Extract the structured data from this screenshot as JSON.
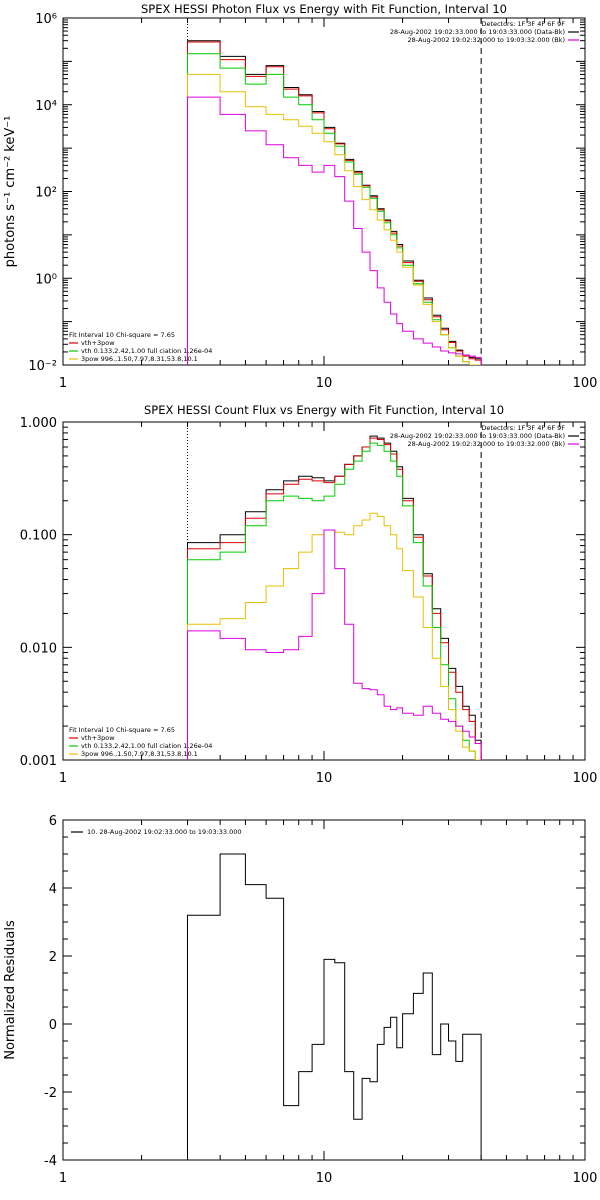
{
  "chart_data": [
    {
      "type": "line",
      "title": "SPEX HESSI Photon Flux vs Energy with Fit Function, Interval 10",
      "xlabel": "",
      "ylabel": "photons s⁻¹ cm⁻² keV⁻¹",
      "x_scale": "log",
      "y_scale": "log",
      "xlim": [
        1,
        100
      ],
      "ylim": [
        0.01,
        1000000
      ],
      "x_ticks": [
        {
          "v": 1,
          "label": "1"
        },
        {
          "v": 10,
          "label": "10"
        },
        {
          "v": 100,
          "label": "100"
        }
      ],
      "y_ticks": [
        {
          "v": 0.01,
          "label": "10⁻²"
        },
        {
          "v": 1,
          "label": "10⁰"
        },
        {
          "v": 100,
          "label": "10²"
        },
        {
          "v": 10000,
          "label": "10⁴"
        },
        {
          "v": 1000000,
          "label": "10⁶"
        }
      ],
      "vlines": [
        {
          "x": 3,
          "style": "dotted"
        },
        {
          "x": 40,
          "style": "dashed"
        }
      ],
      "legend_top_right": [
        "Detectors: 1F 3F 4F 6F 9F",
        "28-Aug-2002 19:02:33.000 to 19:03:33.000 (Data-Bk)",
        "28-Aug-2002 19:02:32.000 to 19:03:32.000 (Bk)"
      ],
      "legend_bottom_left": [
        "Fit Interval 10   Chi-square = 7.65",
        "vth+3pow",
        "vth 0.133,2.42,1.00  full ciation 1.26e-04",
        "3pow 996.,1.50,7.97,8.31,53.8,10.1"
      ],
      "edges": [
        3,
        4,
        5,
        6,
        7,
        8,
        9,
        10,
        11,
        12,
        13,
        14,
        15,
        16,
        17,
        18,
        19,
        20,
        22,
        24,
        26,
        28,
        30,
        32,
        34,
        36,
        38,
        40
      ],
      "series": [
        {
          "color": "#000000",
          "values": [
            300000,
            130000,
            50000,
            80000,
            25000,
            17000,
            7000,
            3000,
            1300,
            550,
            290,
            140,
            80,
            40,
            22,
            12,
            6,
            2.5,
            0.9,
            0.35,
            0.14,
            0.07,
            0.035,
            0.022,
            0.017,
            0.015,
            0.014
          ]
        },
        {
          "color": "#dd0000",
          "values": [
            280000,
            110000,
            45000,
            75000,
            23000,
            16000,
            6500,
            2800,
            1250,
            520,
            270,
            135,
            75,
            38,
            21,
            11,
            5.5,
            2.3,
            0.85,
            0.32,
            0.13,
            0.065,
            0.033,
            0.021,
            0.016,
            0.014,
            0.013
          ]
        },
        {
          "color": "#00cc00",
          "values": [
            150000,
            70000,
            30000,
            50000,
            15000,
            10000,
            4500,
            2200,
            1100,
            480,
            250,
            125,
            70,
            35,
            19,
            10,
            5,
            2,
            0.75,
            0.28,
            0.11,
            0.05,
            0.025,
            0.016,
            0.012,
            0.01,
            0.01
          ]
        },
        {
          "color": "#e8c000",
          "values": [
            50000,
            20000,
            9000,
            6000,
            4500,
            3200,
            2200,
            1400,
            700,
            300,
            130,
            65,
            38,
            22,
            13,
            7.5,
            4,
            1.8,
            0.7,
            0.25,
            0.1,
            0.05,
            0.025,
            0.016,
            0.012,
            0.01,
            0.01
          ]
        },
        {
          "color": "#e000e0",
          "values": [
            15000,
            6000,
            2500,
            1200,
            600,
            400,
            280,
            400,
            220,
            60,
            14,
            4,
            1.5,
            0.6,
            0.28,
            0.15,
            0.09,
            0.06,
            0.04,
            0.032,
            0.026,
            0.021,
            0.019,
            0.018,
            0.017,
            0.016,
            0.015
          ]
        }
      ]
    },
    {
      "type": "line",
      "title": "SPEX HESSI Count Flux vs Energy with Fit Function, Interval 10",
      "xlabel": "",
      "ylabel": "",
      "x_scale": "log",
      "y_scale": "log",
      "xlim": [
        1,
        100
      ],
      "ylim": [
        0.001,
        1
      ],
      "x_ticks": [
        {
          "v": 1,
          "label": "1"
        },
        {
          "v": 10,
          "label": "10"
        },
        {
          "v": 100,
          "label": "100"
        }
      ],
      "y_ticks": [
        {
          "v": 0.001,
          "label": "0.001"
        },
        {
          "v": 0.01,
          "label": "0.010"
        },
        {
          "v": 0.1,
          "label": "0.100"
        },
        {
          "v": 1,
          "label": "1.000"
        }
      ],
      "vlines": [
        {
          "x": 3,
          "style": "dotted"
        },
        {
          "x": 40,
          "style": "dashed"
        }
      ],
      "legend_top_right": [
        "Detectors: 1F 3F 4F 6F 9F",
        "28-Aug-2002 19:02:33.000 to 19:03:33.000 (Data-Bk)",
        "28-Aug-2002 19:02:32.000 to 19:03:32.000 (Bk)"
      ],
      "legend_bottom_left": [
        "Fit Interval 10   Chi-square = 7.65",
        "vth+3pow",
        "vth 0.133,2.42,1.00  full ciation 1.26e-04",
        "3pow 996.,1.50,7.97,8.31,53.8,10.1"
      ],
      "edges": [
        3,
        4,
        5,
        6,
        7,
        8,
        9,
        10,
        11,
        12,
        13,
        14,
        15,
        16,
        17,
        18,
        19,
        20,
        22,
        24,
        26,
        28,
        30,
        32,
        34,
        36,
        38,
        40
      ],
      "series": [
        {
          "color": "#000000",
          "values": [
            0.085,
            0.1,
            0.16,
            0.25,
            0.3,
            0.33,
            0.32,
            0.3,
            0.33,
            0.42,
            0.5,
            0.6,
            0.75,
            0.72,
            0.65,
            0.55,
            0.4,
            0.21,
            0.1,
            0.045,
            0.022,
            0.012,
            0.0065,
            0.0045,
            0.003,
            0.0025,
            0.0015
          ]
        },
        {
          "color": "#dd0000",
          "values": [
            0.075,
            0.085,
            0.14,
            0.23,
            0.28,
            0.31,
            0.3,
            0.29,
            0.33,
            0.42,
            0.5,
            0.6,
            0.72,
            0.7,
            0.63,
            0.52,
            0.38,
            0.2,
            0.095,
            0.043,
            0.02,
            0.011,
            0.006,
            0.004,
            0.0028,
            0.0022,
            0.0014
          ]
        },
        {
          "color": "#00cc00",
          "values": [
            0.06,
            0.07,
            0.12,
            0.2,
            0.22,
            0.21,
            0.2,
            0.22,
            0.28,
            0.38,
            0.45,
            0.55,
            0.65,
            0.62,
            0.55,
            0.45,
            0.33,
            0.18,
            0.085,
            0.035,
            0.015,
            0.007,
            0.0035,
            0.002,
            0.0015,
            0.0012,
            0.001
          ]
        },
        {
          "color": "#e8c000",
          "values": [
            0.016,
            0.018,
            0.025,
            0.035,
            0.05,
            0.07,
            0.1,
            0.11,
            0.105,
            0.1,
            0.12,
            0.135,
            0.155,
            0.145,
            0.12,
            0.1,
            0.075,
            0.048,
            0.028,
            0.015,
            0.008,
            0.0045,
            0.0028,
            0.0018,
            0.0013,
            0.0012,
            0.001
          ]
        },
        {
          "color": "#e000e0",
          "values": [
            0.014,
            0.012,
            0.0095,
            0.009,
            0.0095,
            0.0125,
            0.03,
            0.11,
            0.05,
            0.016,
            0.0048,
            0.0043,
            0.0042,
            0.0038,
            0.003,
            0.0028,
            0.0029,
            0.0026,
            0.0025,
            0.003,
            0.0026,
            0.0023,
            0.0022,
            0.002,
            0.0018,
            0.0016,
            0.0014
          ]
        }
      ]
    },
    {
      "type": "line",
      "title": "",
      "xlabel": "",
      "ylabel": "Normalized Residuals",
      "x_scale": "log",
      "y_scale": "linear",
      "xlim": [
        1,
        100
      ],
      "ylim": [
        -4,
        6
      ],
      "x_ticks": [
        {
          "v": 1,
          "label": "1"
        },
        {
          "v": 10,
          "label": "10"
        },
        {
          "v": 100,
          "label": "100"
        }
      ],
      "y_ticks": [
        {
          "v": -4,
          "label": "-4"
        },
        {
          "v": -2,
          "label": "-2"
        },
        {
          "v": 0,
          "label": "0"
        },
        {
          "v": 2,
          "label": "2"
        },
        {
          "v": 4,
          "label": "4"
        },
        {
          "v": 6,
          "label": "6"
        }
      ],
      "legend_top_left": [
        "10. 28-Aug-2002 19:02:33.000 to 19:03:33.000"
      ],
      "edges": [
        3,
        4,
        5,
        6,
        7,
        8,
        9,
        10,
        11,
        12,
        13,
        14,
        15,
        16,
        17,
        18,
        19,
        20,
        22,
        24,
        26,
        28,
        30,
        32,
        34,
        36,
        38,
        40
      ],
      "series": [
        {
          "color": "#000000",
          "values": [
            3.2,
            5.0,
            4.1,
            3.7,
            -2.4,
            -1.4,
            -0.6,
            1.9,
            1.8,
            -1.4,
            -2.8,
            -1.6,
            -1.7,
            -0.6,
            -0.1,
            0.2,
            -0.7,
            0.3,
            0.9,
            1.5,
            -0.9,
            0.0,
            -0.5,
            -1.1,
            -0.3,
            -0.3,
            -0.3
          ]
        }
      ]
    }
  ]
}
